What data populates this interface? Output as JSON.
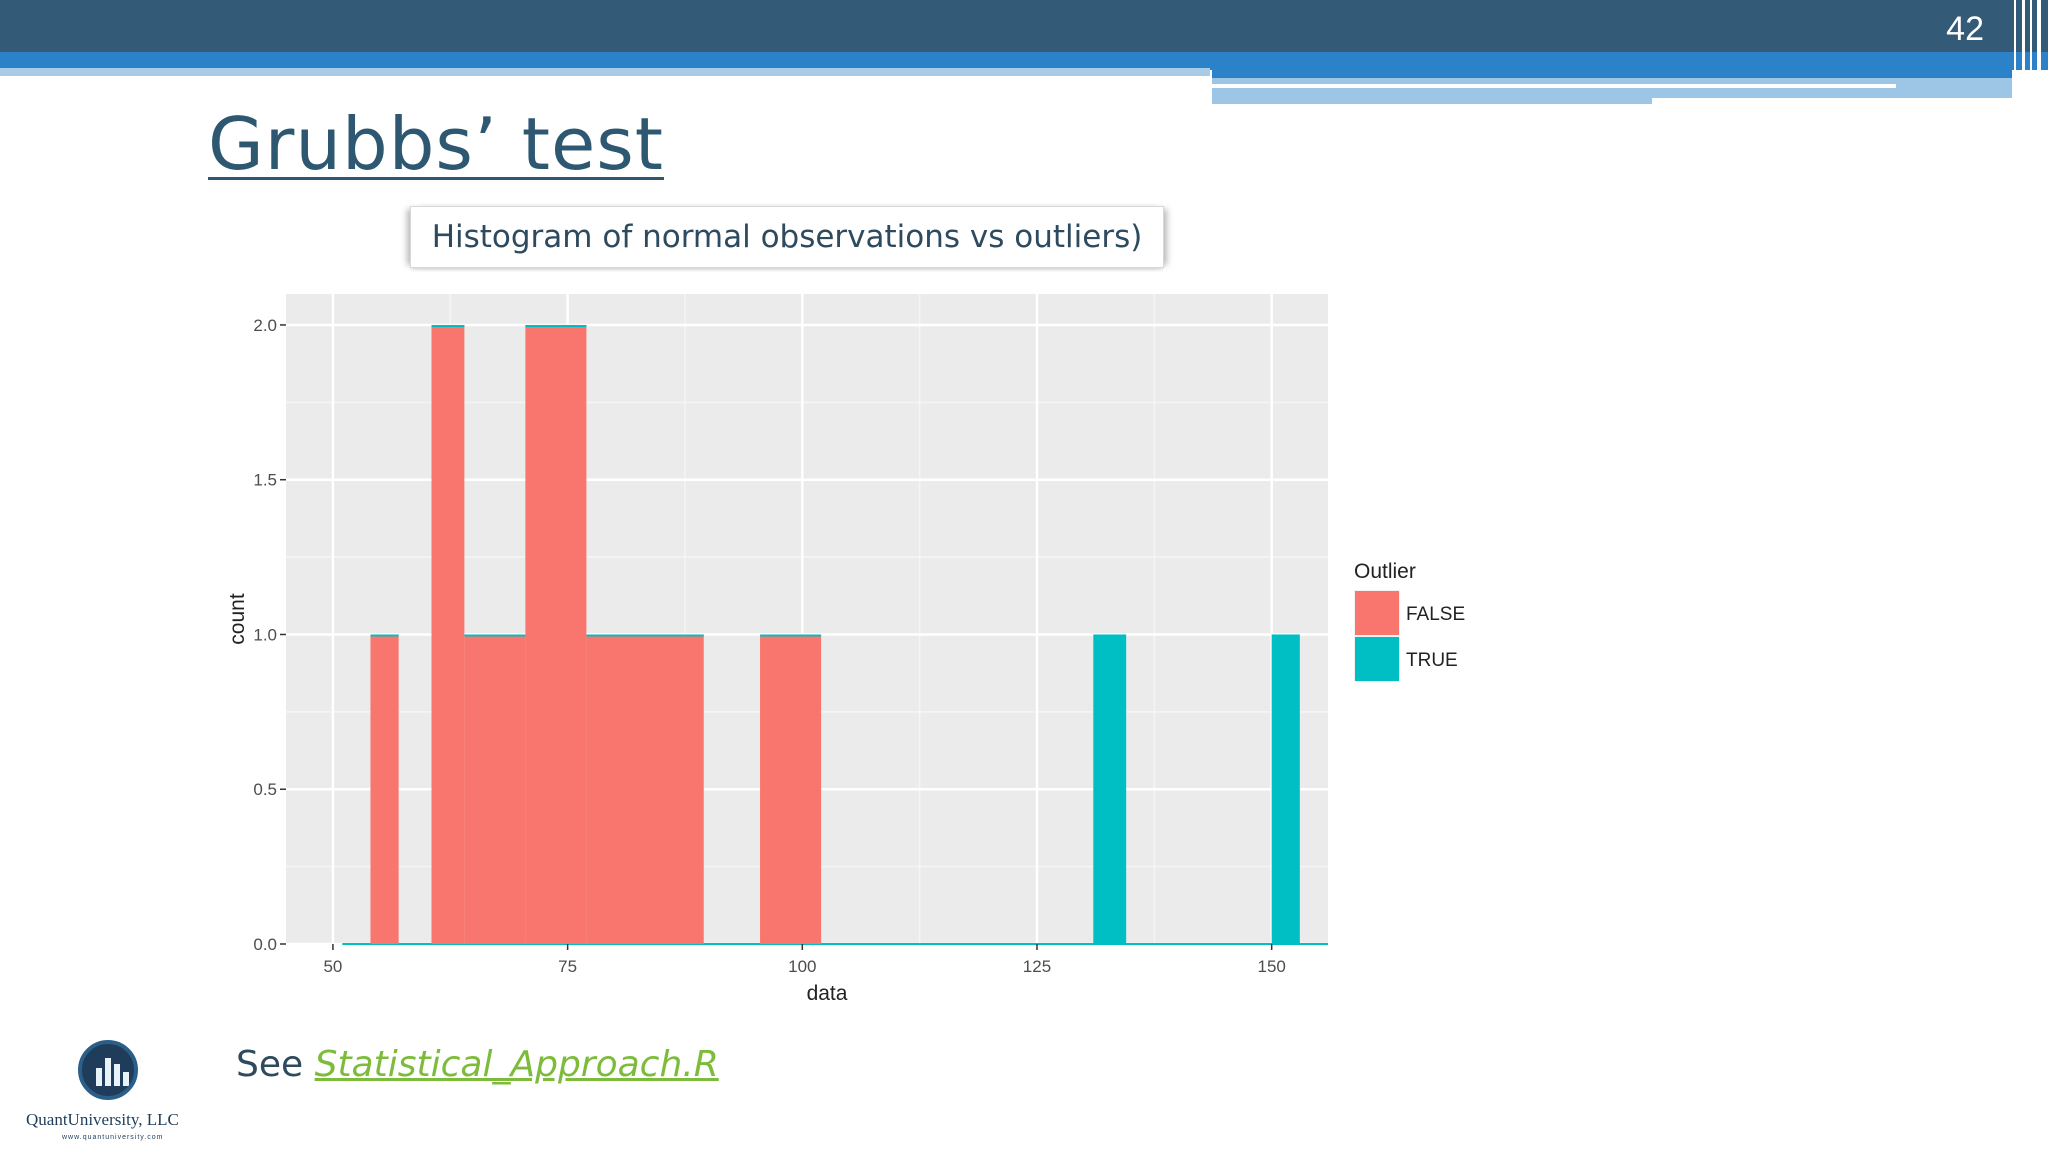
{
  "slide": {
    "page_number": "42",
    "title": "Grubbs’ test",
    "caption": "Histogram of normal observations vs outliers)",
    "footer_prefix": "See ",
    "footer_link": "Statistical_Approach.R",
    "logo_name": "QuantUniversity, LLC",
    "logo_url": "www.quantuniversity.com"
  },
  "chart_data": {
    "type": "bar",
    "title": "",
    "xlabel": "data",
    "ylabel": "count",
    "xlim": [
      45,
      156
    ],
    "ylim": [
      0,
      2.1
    ],
    "x_ticks": [
      50,
      75,
      100,
      125,
      150
    ],
    "y_ticks": [
      0.0,
      0.5,
      1.0,
      1.5,
      2.0
    ],
    "y_tick_labels": [
      "0.0",
      "0.5",
      "1.0",
      "1.5",
      "2.0"
    ],
    "grid": true,
    "legend_position": "right",
    "legend_title": "Outlier",
    "series": [
      {
        "name": "FALSE",
        "color": "#F8766D",
        "bins": [
          [
            54,
            57,
            1
          ],
          [
            60.5,
            64,
            2
          ],
          [
            64,
            70.5,
            1
          ],
          [
            70.5,
            77,
            2
          ],
          [
            77,
            89.5,
            1
          ],
          [
            95.5,
            102,
            1
          ]
        ]
      },
      {
        "name": "TRUE",
        "color": "#00BFC4",
        "bins": [
          [
            131,
            134.5,
            1
          ],
          [
            150,
            153,
            1
          ]
        ]
      }
    ],
    "baseline": [
      51,
      156
    ]
  }
}
